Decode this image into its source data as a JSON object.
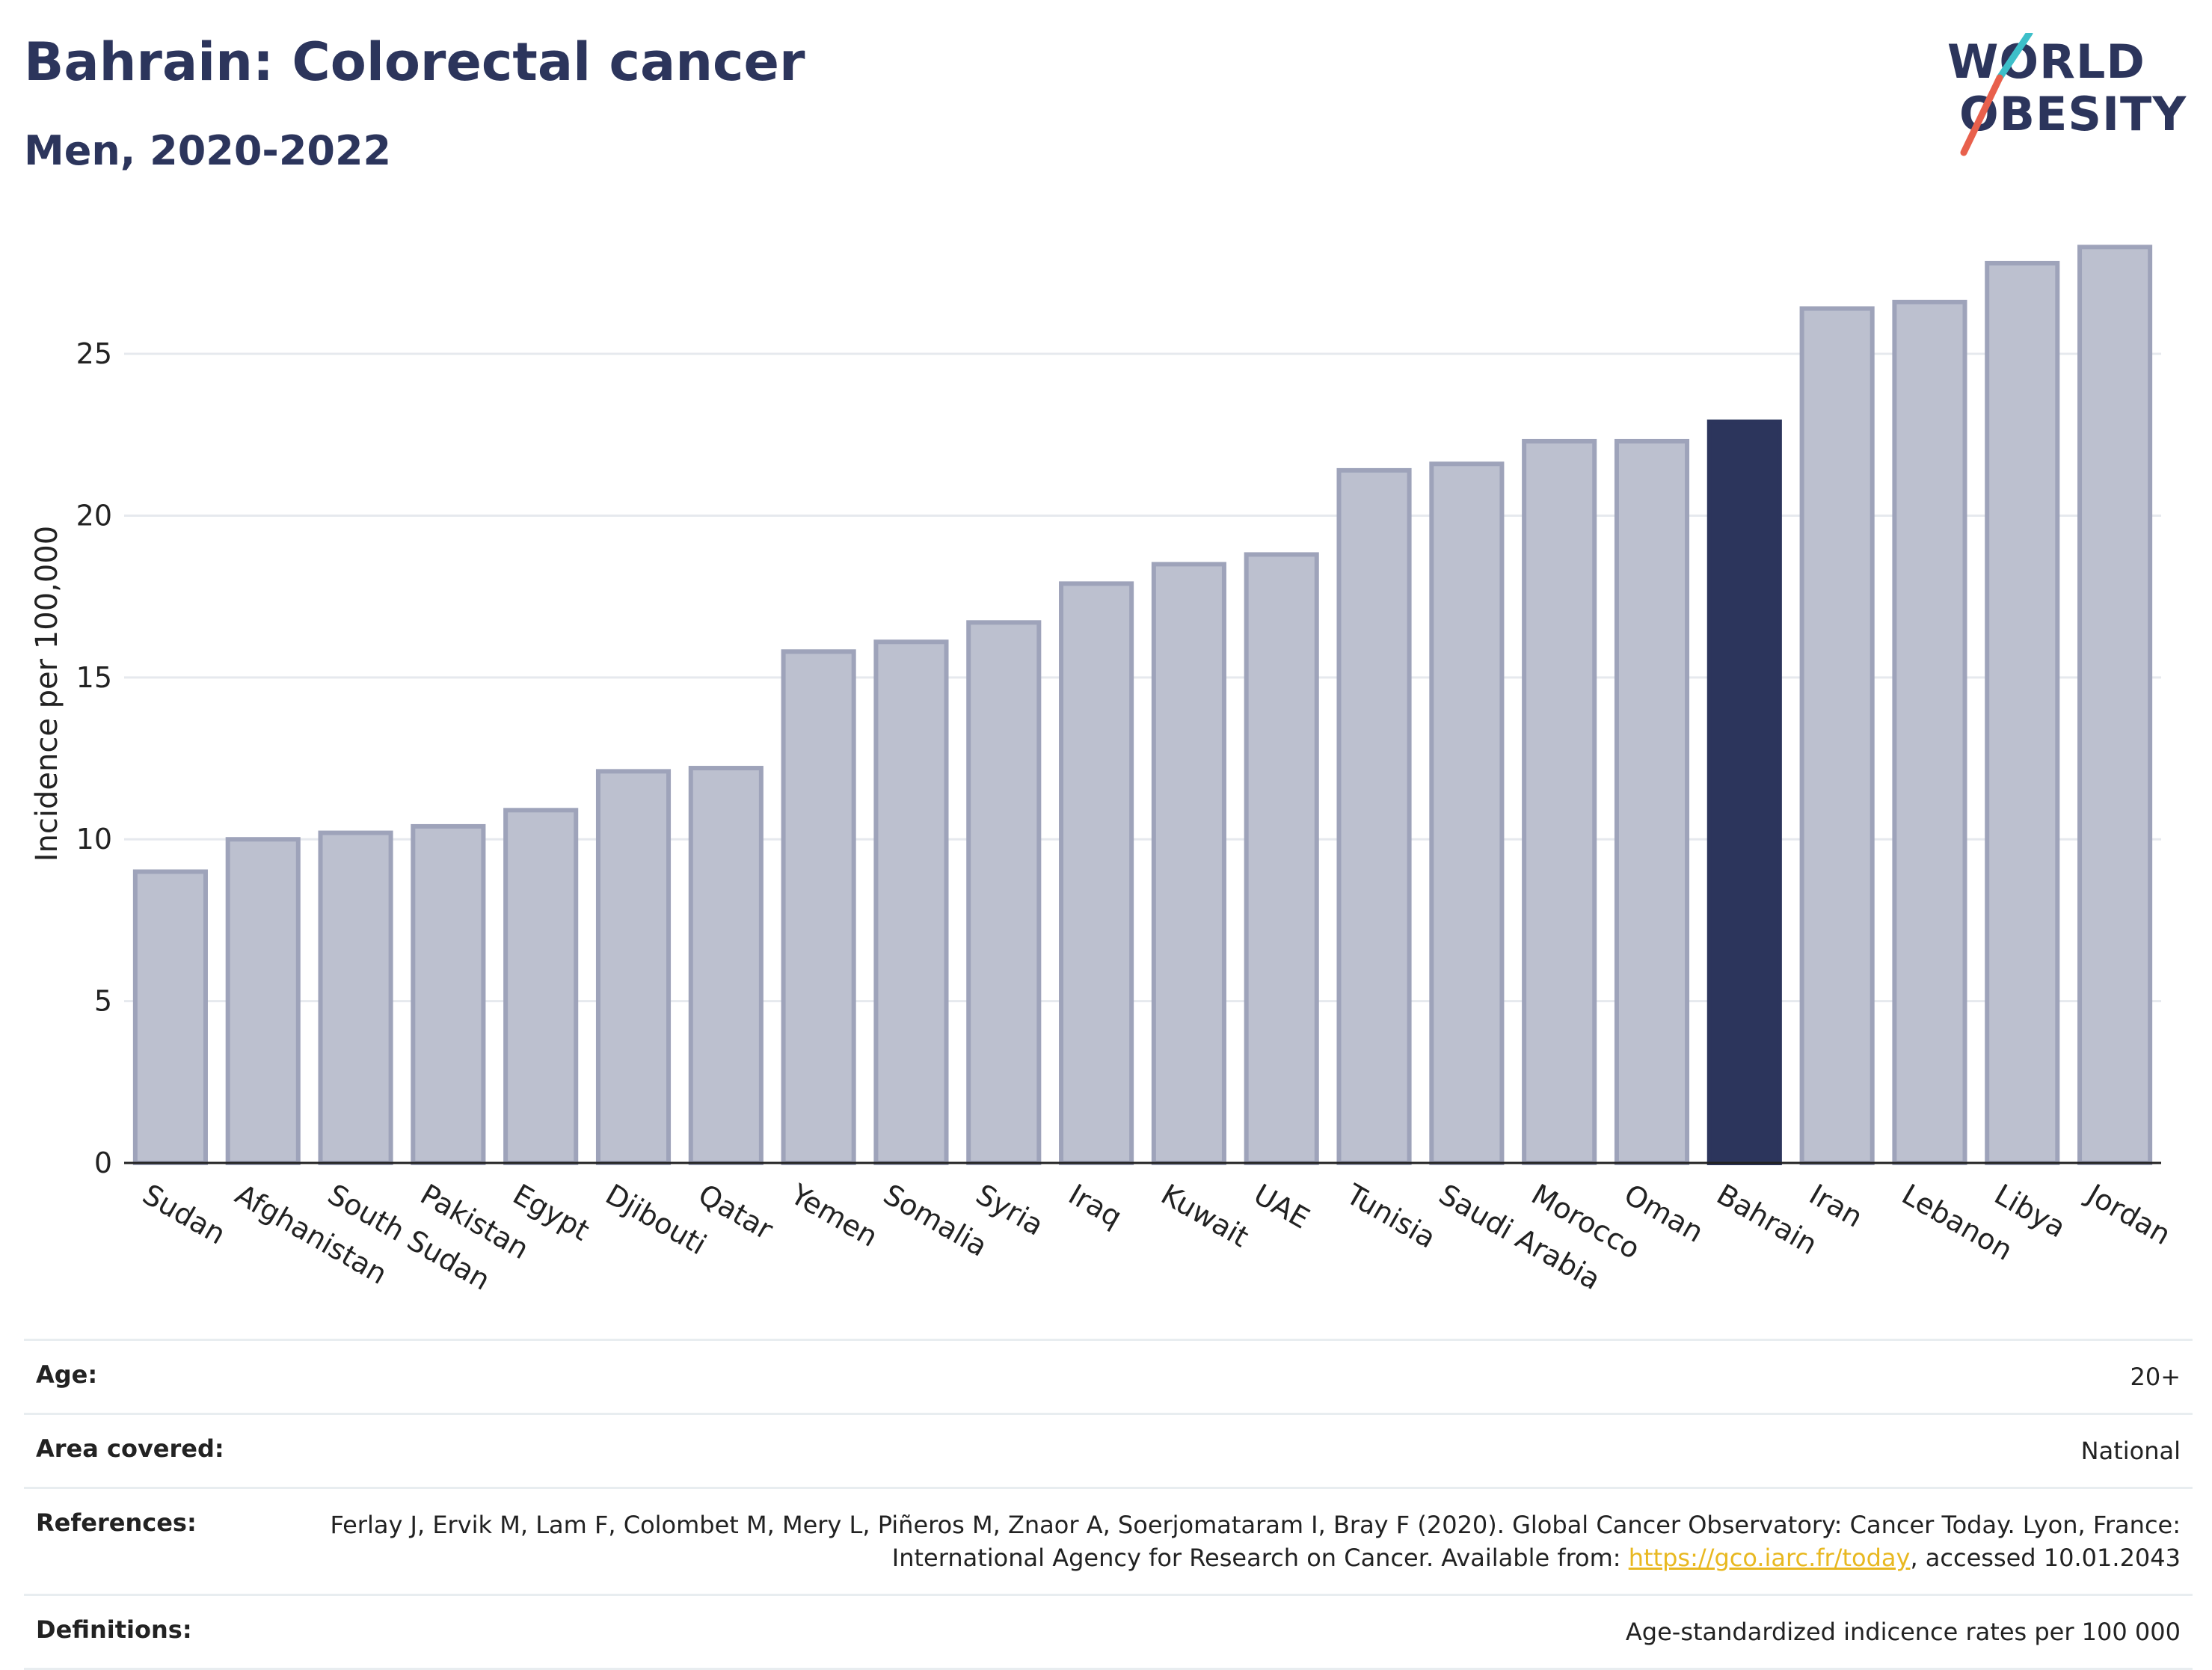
{
  "title": "Bahrain: Colorectal cancer",
  "subtitle": "Men, 2020-2022",
  "logo": {
    "line1": "WORLD",
    "line2": "OBESITY",
    "accent_teal": "#3dbfc9",
    "accent_red": "#e8604c"
  },
  "chart_data": {
    "type": "bar",
    "title": "Bahrain: Colorectal cancer",
    "subtitle": "Men, 2020-2022",
    "xlabel": "",
    "ylabel": "Incidence per 100,000",
    "ylim": [
      0,
      29
    ],
    "yticks": [
      0,
      5,
      10,
      15,
      20,
      25
    ],
    "grid": true,
    "highlight": "Bahrain",
    "colors": {
      "bar": "#bcc0cf",
      "bar_edge": "#9ea3ba",
      "highlight": "#2c355c"
    },
    "categories": [
      "Sudan",
      "Afghanistan",
      "South Sudan",
      "Pakistan",
      "Egypt",
      "Djibouti",
      "Qatar",
      "Yemen",
      "Somalia",
      "Syria",
      "Iraq",
      "Kuwait",
      "UAE",
      "Tunisia",
      "Saudi Arabia",
      "Morocco",
      "Oman",
      "Bahrain",
      "Iran",
      "Lebanon",
      "Libya",
      "Jordan"
    ],
    "values": [
      9.0,
      10.0,
      10.2,
      10.4,
      10.9,
      12.1,
      12.2,
      15.8,
      16.1,
      16.7,
      17.9,
      18.5,
      18.8,
      21.4,
      21.6,
      22.3,
      22.3,
      22.9,
      26.4,
      26.6,
      27.8,
      28.3
    ]
  },
  "info": {
    "age_label": "Age:",
    "age_value": "20+",
    "area_label": "Area covered:",
    "area_value": "National",
    "references_label": "References:",
    "references_text": "Ferlay J, Ervik M, Lam F, Colombet M, Mery L, Piñeros M, Znaor A, Soerjomataram I, Bray F (2020). Global Cancer Observatory: Cancer Today. Lyon, France: International Agency for Research on Cancer. Available from: ",
    "references_link": "https://gco.iarc.fr/today",
    "references_suffix": ", accessed 10.01.2043",
    "definitions_label": "Definitions:",
    "definitions_value": "Age-standardized indicence rates per 100 000"
  }
}
